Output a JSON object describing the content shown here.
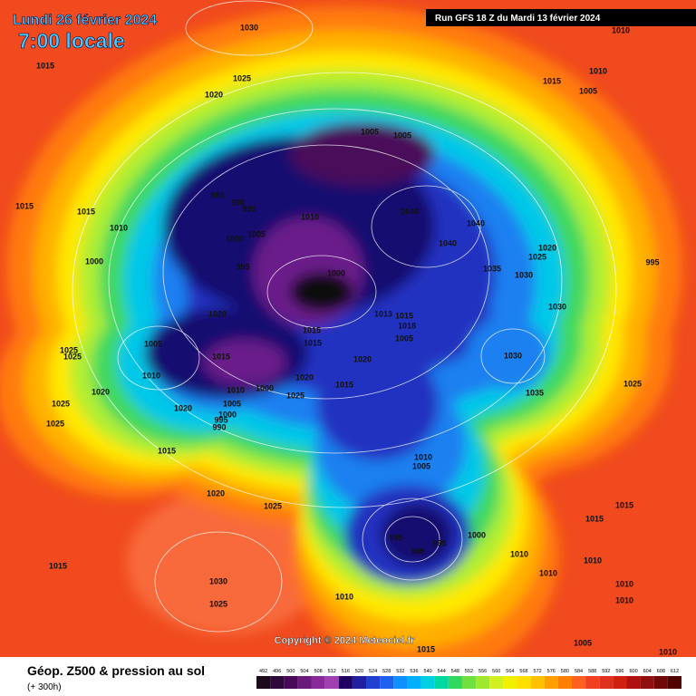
{
  "header": {
    "date": "Lundi 26 février 2024",
    "time": "7:00 locale",
    "run": "Run GFS 18 Z du Mardi 13 février 2024"
  },
  "copyright": "Copyright © 2024 Meteociel.fr",
  "legend": {
    "title": "Géop. Z500 & pression au sol",
    "subtitle": "(+ 300h)",
    "scale": [
      492,
      496,
      500,
      504,
      508,
      512,
      516,
      520,
      524,
      528,
      532,
      536,
      540,
      544,
      548,
      552,
      556,
      560,
      564,
      568,
      572,
      576,
      580,
      584,
      588,
      592,
      596,
      600,
      604,
      608,
      612
    ]
  },
  "isobar_labels": [
    1030,
    1015,
    1025,
    1020,
    1010,
    1010,
    1015,
    1005,
    1005,
    1005,
    985,
    990,
    995,
    1015,
    1015,
    1010,
    1040,
    1040,
    1040,
    1010,
    1005,
    1000,
    1000,
    995,
    1000,
    1020,
    1025,
    1030,
    1035,
    995,
    1030,
    1020,
    1013,
    1015,
    1015,
    1015,
    1018,
    1005,
    1005,
    1015,
    1020,
    1030,
    1010,
    1025,
    1025,
    1020,
    1015,
    1020,
    1010,
    1000,
    1025,
    1035,
    1025,
    1005,
    1020,
    1000,
    995,
    990,
    1025,
    1025,
    1015,
    1010,
    1005,
    1020,
    1025,
    1015,
    1015,
    995,
    985,
    985,
    1000,
    1010,
    1010,
    1010,
    1010,
    1010,
    1015,
    1030,
    1025,
    1010,
    1005,
    1010,
    1015
  ]
}
